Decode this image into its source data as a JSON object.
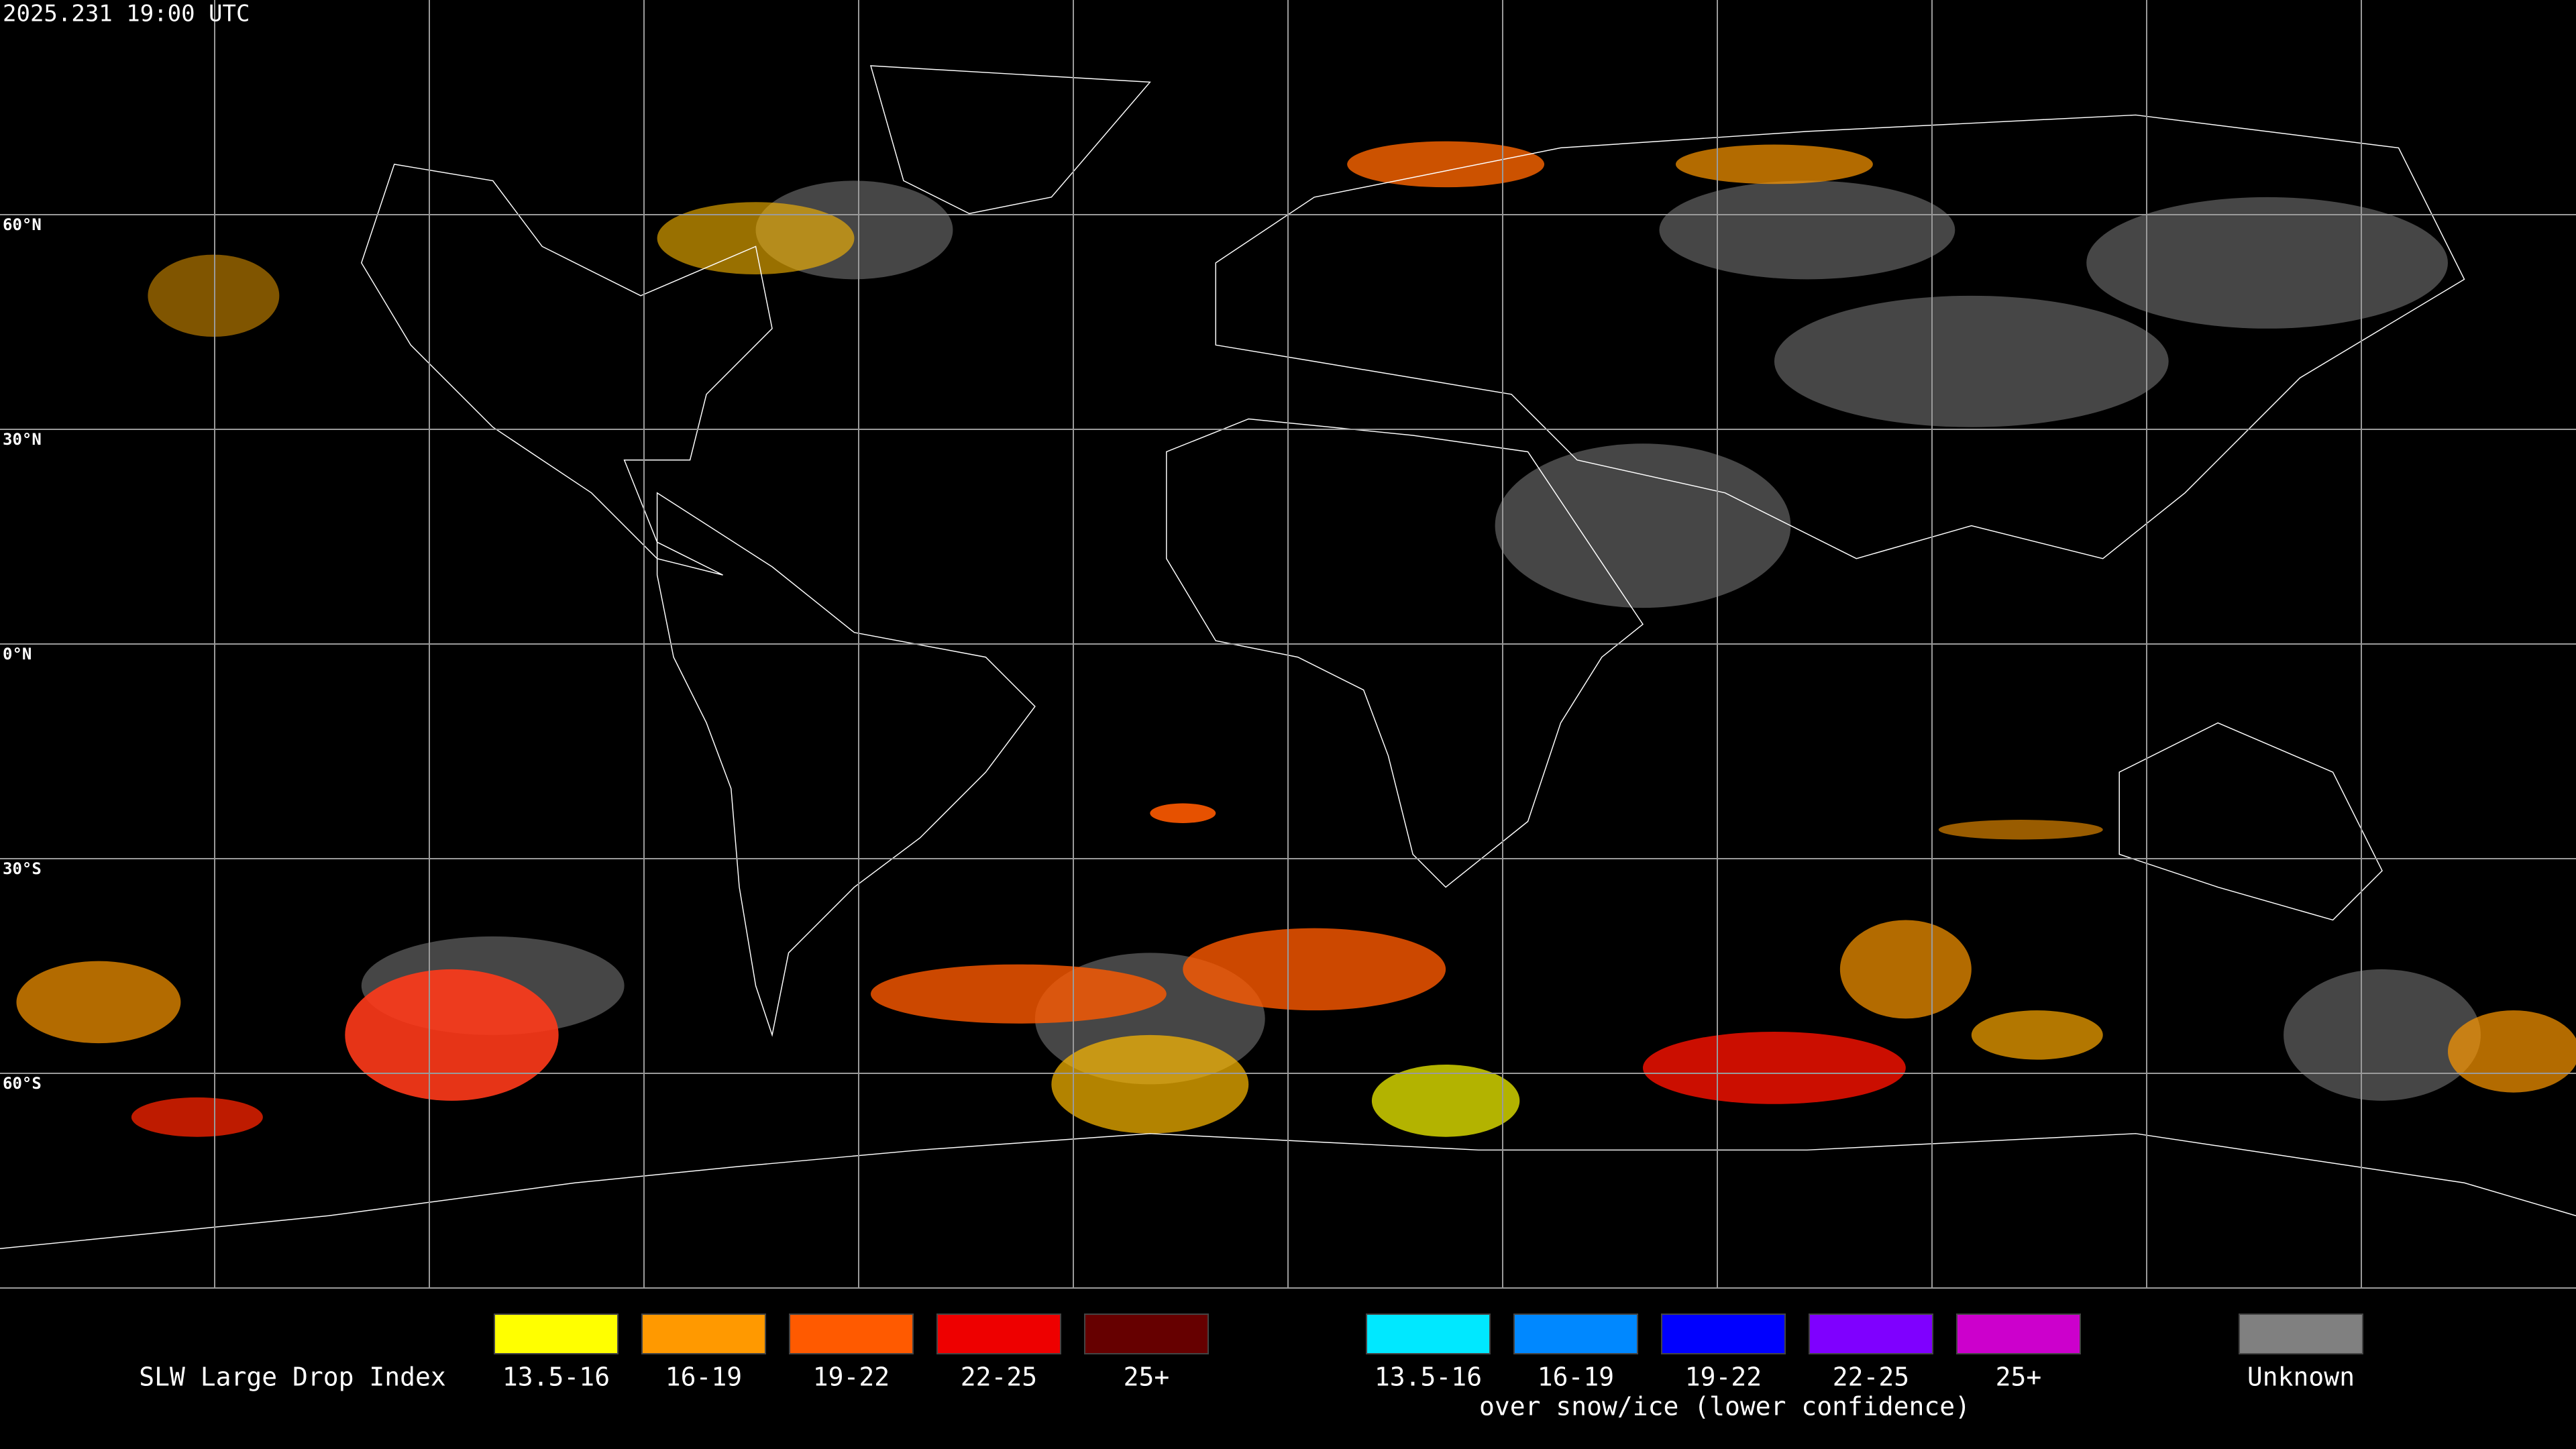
{
  "timestamp": "2025.231 19:00 UTC",
  "lat_lines": [
    {
      "value": 60,
      "label": "60°N"
    },
    {
      "value": 30,
      "label": "30°N"
    },
    {
      "value": 0,
      "label": "0°N"
    },
    {
      "value": -30,
      "label": "30°S"
    },
    {
      "value": -60,
      "label": "60°S"
    }
  ],
  "legend": {
    "title": "SLW Large Drop Index",
    "items": [
      {
        "label": "13.5-16",
        "color": "#ffff00"
      },
      {
        "label": "16-19",
        "color": "#ff9900"
      },
      {
        "label": "19-22",
        "color": "#ff5a00"
      },
      {
        "label": "22-25",
        "color": "#ee0000"
      },
      {
        "label": "25+",
        "color": "#660000"
      }
    ],
    "snow_items": [
      {
        "label": "13.5-16",
        "color": "#00e8ff"
      },
      {
        "label": "16-19",
        "color": "#0088ff"
      },
      {
        "label": "19-22",
        "color": "#0000ff"
      },
      {
        "label": "22-25",
        "color": "#7f00ff"
      },
      {
        "label": "25+",
        "color": "#cc00cc"
      }
    ],
    "snow_caption": "over snow/ice (lower confidence)",
    "unknown": {
      "label": "Unknown",
      "color": "#808080"
    }
  }
}
